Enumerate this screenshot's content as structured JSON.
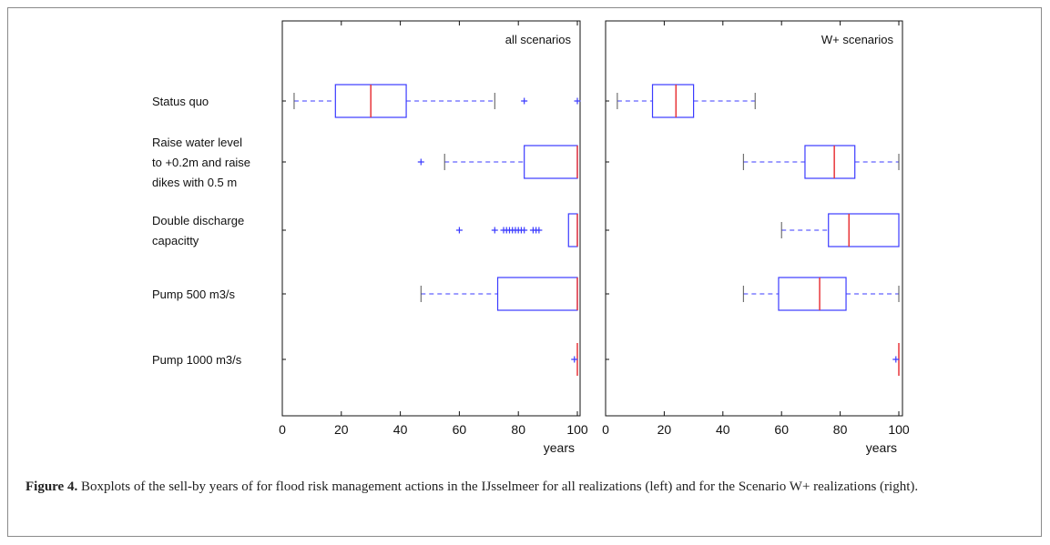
{
  "caption": {
    "label": "Figure 4.",
    "text": "Boxplots of the sell-by years of for flood risk management actions in the IJsselmeer for all realizations (left) and for the Scenario W+ realizations (right)."
  },
  "colors": {
    "box": "#3b3bff",
    "median": "#e8363a",
    "whisker_cap": "#555555",
    "axis": "#111111"
  },
  "chart_data": [
    {
      "type": "box",
      "title": "all scenarios",
      "xlabel": "years",
      "xlim": [
        0,
        100
      ],
      "xticks": [
        "0",
        "20",
        "40",
        "60",
        "80",
        "100"
      ],
      "categories": [
        [
          "Status quo"
        ],
        [
          "Raise water level",
          "to +0.2m and raise",
          "dikes with 0.5 m"
        ],
        [
          "Double discharge",
          "capacitty"
        ],
        [
          "Pump 500 m3/s"
        ],
        [
          "Pump 1000 m3/s"
        ]
      ],
      "boxes": [
        {
          "whisker_low": 4,
          "q1": 18,
          "median": 30,
          "q3": 42,
          "whisker_high": 72,
          "outliers": [
            82,
            100
          ]
        },
        {
          "whisker_low": 55,
          "q1": 82,
          "median": 100,
          "q3": 100,
          "whisker_high": 100,
          "outliers": [
            47
          ]
        },
        {
          "whisker_low": 97,
          "q1": 97,
          "median": 100,
          "q3": 100,
          "whisker_high": 100,
          "outliers": [
            60,
            72,
            75,
            76,
            77,
            78,
            79,
            80,
            81,
            82,
            85,
            86,
            87
          ]
        },
        {
          "whisker_low": 47,
          "q1": 73,
          "median": 100,
          "q3": 100,
          "whisker_high": 100,
          "outliers": []
        },
        {
          "whisker_low": 100,
          "q1": 100,
          "median": 100,
          "q3": 100,
          "whisker_high": 100,
          "outliers": [
            99
          ]
        }
      ]
    },
    {
      "type": "box",
      "title": "W+ scenarios",
      "xlabel": "years",
      "xlim": [
        0,
        100
      ],
      "xticks": [
        "0",
        "20",
        "40",
        "60",
        "80",
        "100"
      ],
      "categories": [],
      "boxes": [
        {
          "whisker_low": 4,
          "q1": 16,
          "median": 24,
          "q3": 30,
          "whisker_high": 51,
          "outliers": []
        },
        {
          "whisker_low": 47,
          "q1": 68,
          "median": 78,
          "q3": 85,
          "whisker_high": 100,
          "outliers": []
        },
        {
          "whisker_low": 60,
          "q1": 76,
          "median": 83,
          "q3": 100,
          "whisker_high": 100,
          "outliers": []
        },
        {
          "whisker_low": 47,
          "q1": 59,
          "median": 73,
          "q3": 82,
          "whisker_high": 100,
          "outliers": []
        },
        {
          "whisker_low": 100,
          "q1": 100,
          "median": 100,
          "q3": 100,
          "whisker_high": 100,
          "outliers": [
            99
          ]
        }
      ]
    }
  ]
}
